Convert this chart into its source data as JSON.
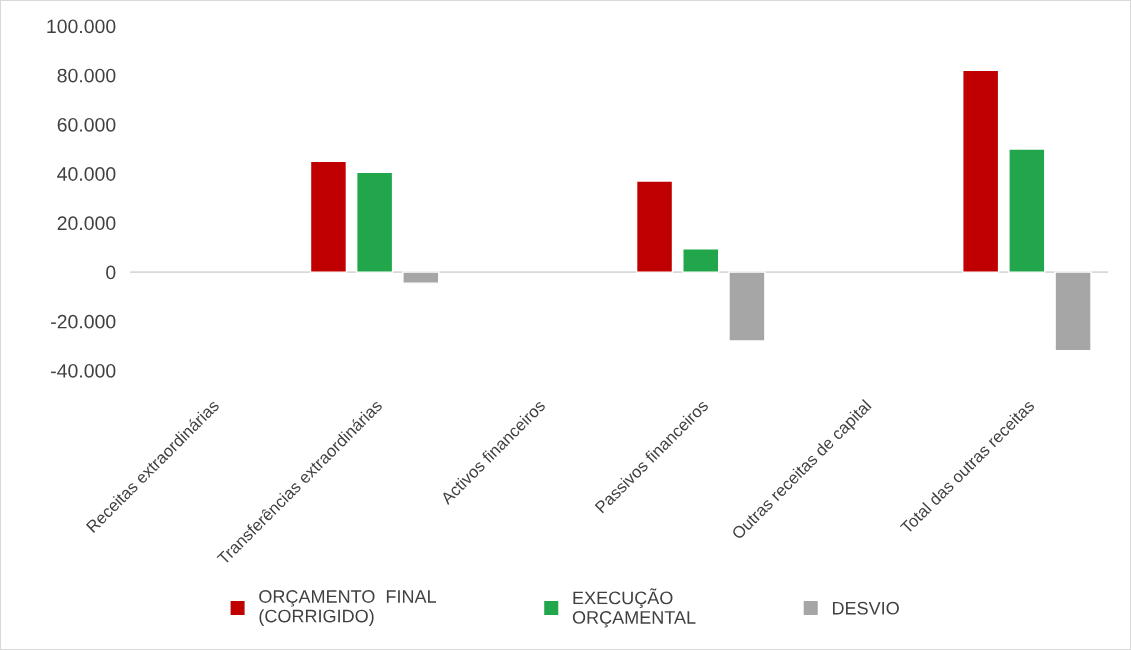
{
  "chart_data": {
    "type": "bar",
    "categories": [
      "Receitas extraordinárias",
      "Transferências extraordinárias",
      "Activos financeiros",
      "Passivos financeiros",
      "Outras receitas de capital",
      "Total das outras receitas"
    ],
    "series": [
      {
        "name": "ORÇAMENTO  FINAL (CORRIGIDO)",
        "color": "#c00000",
        "values": [
          null,
          45000,
          null,
          37000,
          null,
          82000
        ]
      },
      {
        "name": "EXECUÇÃO ORÇAMENTAL",
        "color": "#22a64b",
        "values": [
          null,
          40500,
          null,
          9500,
          null,
          50000
        ]
      },
      {
        "name": "DESVIO",
        "color": "#a6a6a6",
        "values": [
          null,
          -4500,
          null,
          -28000,
          null,
          -32000
        ]
      }
    ],
    "ylim": [
      -40000,
      100000
    ],
    "yticks": [
      {
        "value": -40000,
        "label": "-40.000"
      },
      {
        "value": -20000,
        "label": "-20.000"
      },
      {
        "value": 0,
        "label": "0"
      },
      {
        "value": 20000,
        "label": "20.000"
      },
      {
        "value": 40000,
        "label": "40.000"
      },
      {
        "value": 60000,
        "label": "60.000"
      },
      {
        "value": 80000,
        "label": "80.000"
      },
      {
        "value": 100000,
        "label": "100.000"
      }
    ],
    "ref_lines": [
      {
        "axis": "y",
        "value": 0,
        "color": "#d9d9d9"
      }
    ],
    "legend": "bottom"
  }
}
